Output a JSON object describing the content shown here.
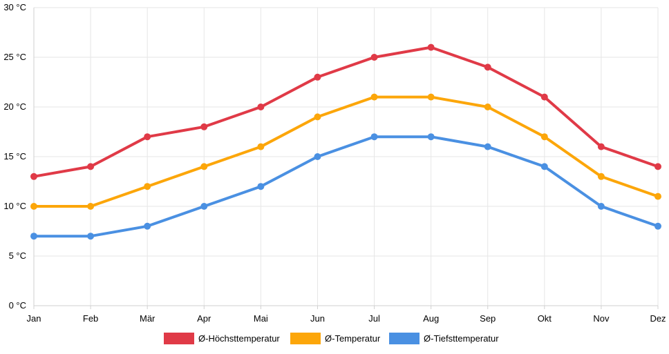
{
  "chart_data": {
    "type": "line",
    "categories": [
      "Jan",
      "Feb",
      "Mär",
      "Apr",
      "Mai",
      "Jun",
      "Jul",
      "Aug",
      "Sep",
      "Okt",
      "Nov",
      "Dez"
    ],
    "y_ticks": [
      "0 °C",
      "5 °C",
      "10 °C",
      "15 °C",
      "20 °C",
      "25 °C",
      "30 °C"
    ],
    "ylim": [
      0,
      30
    ],
    "grid": true,
    "legend_position": "bottom",
    "series": [
      {
        "name": "Ø-Höchsttemperatur",
        "color": "#e03a47",
        "values": [
          13,
          14,
          17,
          18,
          20,
          23,
          25,
          26,
          24,
          21,
          16,
          14
        ]
      },
      {
        "name": "Ø-Temperatur",
        "color": "#fca60a",
        "values": [
          10,
          10,
          12,
          14,
          16,
          19,
          21,
          21,
          20,
          17,
          13,
          11
        ]
      },
      {
        "name": "Ø-Tiefsttemperatur",
        "color": "#4a90e2",
        "values": [
          7,
          7,
          8,
          10,
          12,
          15,
          17,
          17,
          16,
          14,
          10,
          8
        ]
      }
    ]
  }
}
